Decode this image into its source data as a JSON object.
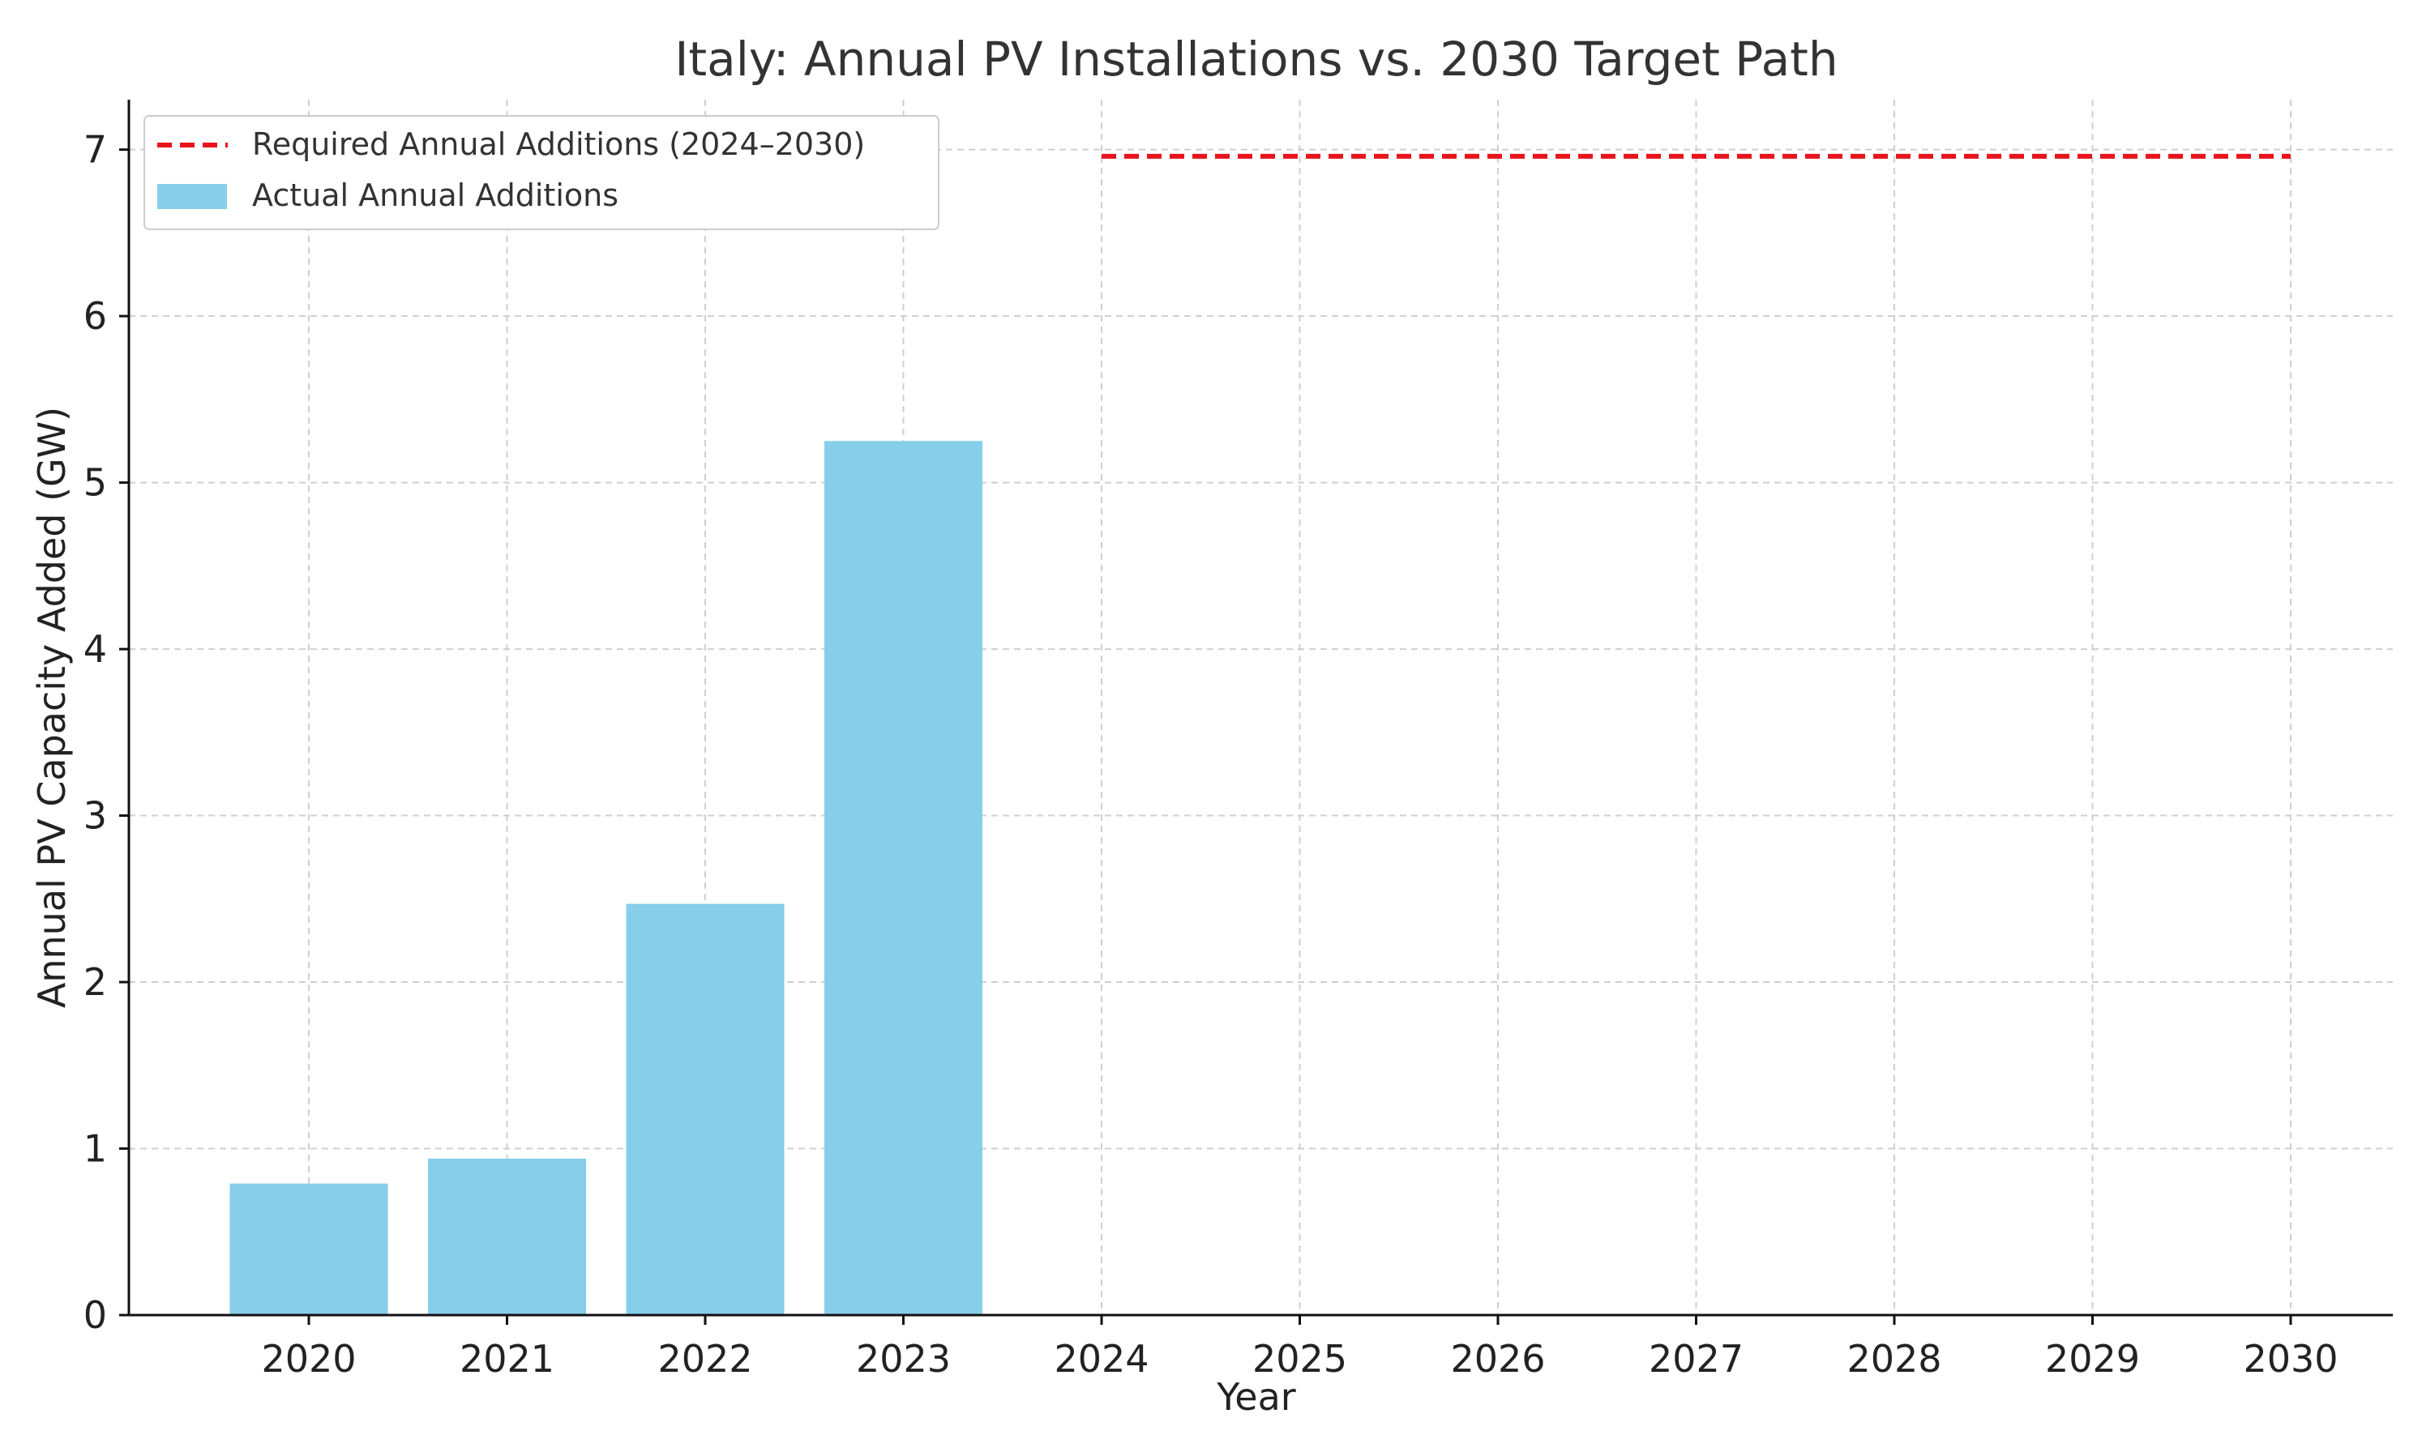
{
  "chart_data": {
    "type": "bar",
    "title": "Italy: Annual PV Installations vs. 2030 Target Path",
    "xlabel": "Year",
    "ylabel": "Annual PV Capacity Added (GW)",
    "categories": [
      "2020",
      "2021",
      "2022",
      "2023",
      "2024",
      "2025",
      "2026",
      "2027",
      "2028",
      "2029",
      "2030"
    ],
    "ylim": [
      0,
      7.3
    ],
    "yticks": [
      0,
      1,
      2,
      3,
      4,
      5,
      6,
      7
    ],
    "grid": true,
    "legend_position": "top-left",
    "series": [
      {
        "name": "Actual Annual Additions",
        "kind": "bar",
        "color": "#87CEEB",
        "x": [
          "2020",
          "2021",
          "2022",
          "2023"
        ],
        "values": [
          0.79,
          0.94,
          2.47,
          5.25
        ]
      },
      {
        "name": "Required Annual Additions (2024–2030)",
        "kind": "line",
        "style": "dashed",
        "color": "#e8141c",
        "x": [
          "2024",
          "2025",
          "2026",
          "2027",
          "2028",
          "2029",
          "2030"
        ],
        "values": [
          6.96,
          6.96,
          6.96,
          6.96,
          6.96,
          6.96,
          6.96
        ]
      }
    ]
  }
}
